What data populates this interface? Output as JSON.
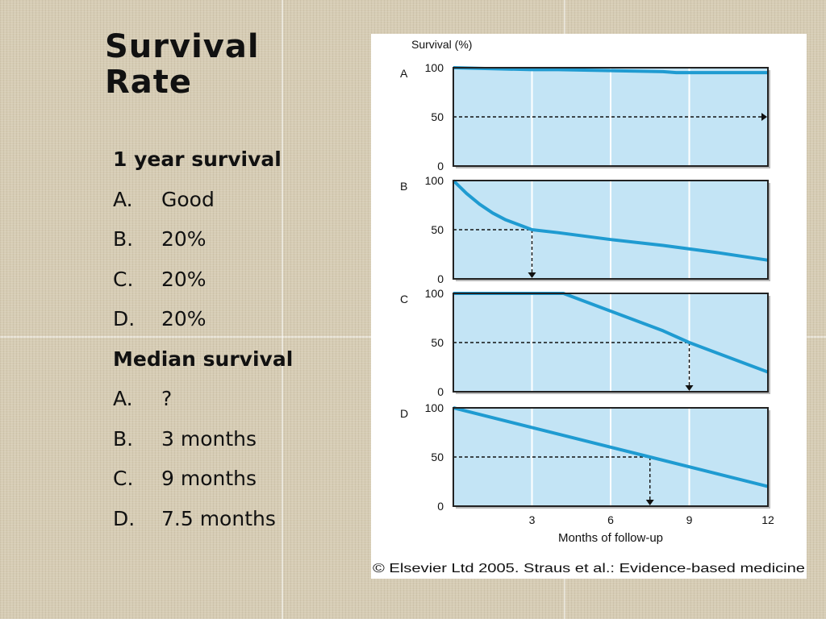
{
  "slide": {
    "title_line1": "Survival",
    "title_line2": "Rate",
    "list": [
      {
        "type": "heading",
        "text": "1 year survival"
      },
      {
        "type": "item",
        "letter": "A.",
        "text": "Good"
      },
      {
        "type": "item",
        "letter": "B.",
        "text": "20%"
      },
      {
        "type": "item",
        "letter": "C.",
        "text": "20%"
      },
      {
        "type": "item",
        "letter": "D.",
        "text": "20%"
      },
      {
        "type": "heading",
        "text": "Median survival"
      },
      {
        "type": "item",
        "letter": "A.",
        "text": "?"
      },
      {
        "type": "item",
        "letter": "B.",
        "text": "3 months"
      },
      {
        "type": "item",
        "letter": "C.",
        "text": "9 months"
      },
      {
        "type": "item",
        "letter": "D.",
        "text": "7.5 months"
      }
    ]
  },
  "figure": {
    "ylabel": "Survival (%)",
    "xlabel": "Months of follow-up",
    "credit": "© Elsevier Ltd 2005. Straus et al.: Evidence-based medicine",
    "colors": {
      "plot_bg": "#c3e4f5",
      "line": "#1f9bd1",
      "border": "#222222",
      "grid": "#ffffff"
    }
  },
  "chart_data": [
    {
      "type": "line",
      "panel": "A",
      "x": [
        0,
        3,
        4,
        8,
        8.5,
        12
      ],
      "y": [
        100,
        98,
        98,
        96,
        95,
        95
      ],
      "xlim": [
        0,
        12
      ],
      "ylim": [
        0,
        100
      ],
      "xticks": [
        3,
        6,
        9,
        12
      ],
      "yticks": [
        0,
        50,
        100
      ],
      "guide": {
        "y": 50
      }
    },
    {
      "type": "line",
      "panel": "B",
      "x": [
        0,
        0.5,
        1,
        1.5,
        2,
        2.5,
        3,
        4,
        6,
        8,
        10,
        12
      ],
      "y": [
        100,
        87,
        76,
        67,
        60,
        55,
        50,
        47,
        40,
        34,
        27,
        19
      ],
      "xlim": [
        0,
        12
      ],
      "ylim": [
        0,
        100
      ],
      "xticks": [
        3,
        6,
        9,
        12
      ],
      "yticks": [
        0,
        50,
        100
      ],
      "guide": {
        "y": 50,
        "x": 3
      }
    },
    {
      "type": "line",
      "panel": "C",
      "x": [
        0,
        4.2,
        6,
        8,
        9,
        10,
        12
      ],
      "y": [
        100,
        100,
        82,
        62,
        50,
        40,
        20
      ],
      "xlim": [
        0,
        12
      ],
      "ylim": [
        0,
        100
      ],
      "xticks": [
        3,
        6,
        9,
        12
      ],
      "yticks": [
        0,
        50,
        100
      ],
      "guide": {
        "y": 50,
        "x": 9
      }
    },
    {
      "type": "line",
      "panel": "D",
      "x": [
        0,
        3,
        6,
        7.5,
        9,
        12
      ],
      "y": [
        100,
        80,
        60,
        50,
        40,
        20
      ],
      "xlim": [
        0,
        12
      ],
      "ylim": [
        0,
        100
      ],
      "xticks": [
        3,
        6,
        9,
        12
      ],
      "yticks": [
        0,
        50,
        100
      ],
      "guide": {
        "y": 50,
        "x": 7.5
      }
    }
  ]
}
